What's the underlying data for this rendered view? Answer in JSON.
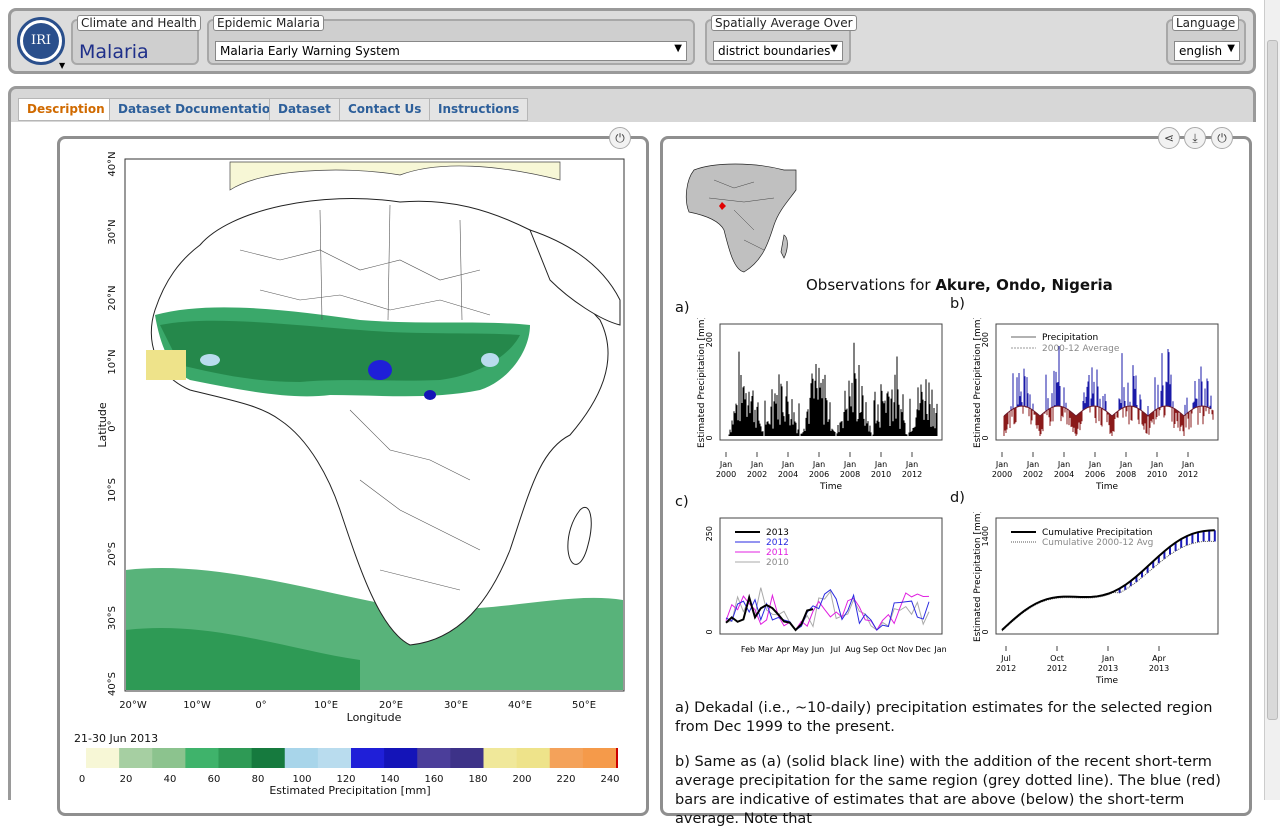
{
  "header": {
    "logo_text": "IRI",
    "climate_label": "Climate and Health",
    "climate_value": "Malaria",
    "epidemic_label": "Epidemic Malaria",
    "epidemic_value": "Malaria Early Warning System",
    "spatial_label": "Spatially Average Over",
    "spatial_value": "district boundaries",
    "language_label": "Language",
    "language_value": "english"
  },
  "tabs": [
    {
      "label": "Description",
      "active": true
    },
    {
      "label": "Dataset Documentation",
      "active": false
    },
    {
      "label": "Dataset",
      "active": false
    },
    {
      "label": "Contact Us",
      "active": false
    },
    {
      "label": "Instructions",
      "active": false
    }
  ],
  "map": {
    "lat_ticks": [
      "40°N",
      "30°N",
      "20°N",
      "10°N",
      "0°",
      "10°S",
      "20°S",
      "30°S",
      "40°S"
    ],
    "lon_ticks": [
      "20°W",
      "10°W",
      "0°",
      "10°E",
      "20°E",
      "30°E",
      "40°E",
      "50°E"
    ],
    "xlabel": "Longitude",
    "ylabel": "Latitude",
    "date": "21-30 Jun 2013",
    "colorbar_ticks": [
      "0",
      "20",
      "40",
      "60",
      "80",
      "100",
      "120",
      "140",
      "160",
      "180",
      "200",
      "220",
      "240"
    ],
    "colorbar_label": "Estimated Precipitation [mm]",
    "colorbar_colors": [
      "#f7f7d6",
      "#a6cfa2",
      "#8cc38e",
      "#3fb36b",
      "#2e9a55",
      "#167a3e",
      "#a8d5ea",
      "#b9dcee",
      "#1f1fd8",
      "#1414b8",
      "#4b3e9a",
      "#3d3288",
      "#f0e89a",
      "#eee38a",
      "#f4a25a",
      "#f59a4a"
    ],
    "colors": {
      "sahara": "#ffffff",
      "greenband": "#3aa86a",
      "ocean_south": "#58b37a",
      "sea": "#ffffff"
    }
  },
  "right": {
    "title_prefix": "Observations for ",
    "title_place": "Akure, Ondo, Nigeria",
    "labels": {
      "a": "a)",
      "b": "b)",
      "c": "c)",
      "d": "d)"
    },
    "ylabel_a": "Estimated Precipitation [mm]",
    "ylabel_b": "Estimated Precipitation [mm]",
    "ylabel_d": "Estimated Precipitation [mm]",
    "time_label": "Time",
    "year_ticks_top": [
      "Jan",
      "Jan",
      "Jan",
      "Jan",
      "Jan",
      "Jan",
      "Jan"
    ],
    "year_ticks_bottom": [
      "2000",
      "2002",
      "2004",
      "2006",
      "2008",
      "2010",
      "2012"
    ],
    "y200": "200",
    "y0": "0",
    "y250": "250",
    "y1400": "1400",
    "legend_b": [
      "Precipitation",
      "2000-12 Average"
    ],
    "legend_c": [
      "2013",
      "2012",
      "2011",
      "2010"
    ],
    "months_c": [
      "Feb",
      "Mar",
      "Apr",
      "May",
      "Jun",
      "Jul",
      "Aug",
      "Sep",
      "Oct",
      "Nov",
      "Dec",
      "Jan"
    ],
    "legend_d": [
      "Cumulative Precipitation",
      "Cumulative 2000-12 Avg"
    ],
    "d_ticks_top": [
      "Jul",
      "Oct",
      "Jan",
      "Apr"
    ],
    "d_ticks_bottom": [
      "2012",
      "2012",
      "2013",
      "2013"
    ],
    "para_a": "a) Dekadal (i.e., ~10-daily) precipitation estimates for the selected region from Dec 1999 to the present.",
    "para_b": "b) Same as (a) (solid black line) with the addition of the recent short-term average precipitation for the same region (grey dotted line). The blue (red) bars are indicative of estimates that are above (below) the short-term average. Note that"
  }
}
